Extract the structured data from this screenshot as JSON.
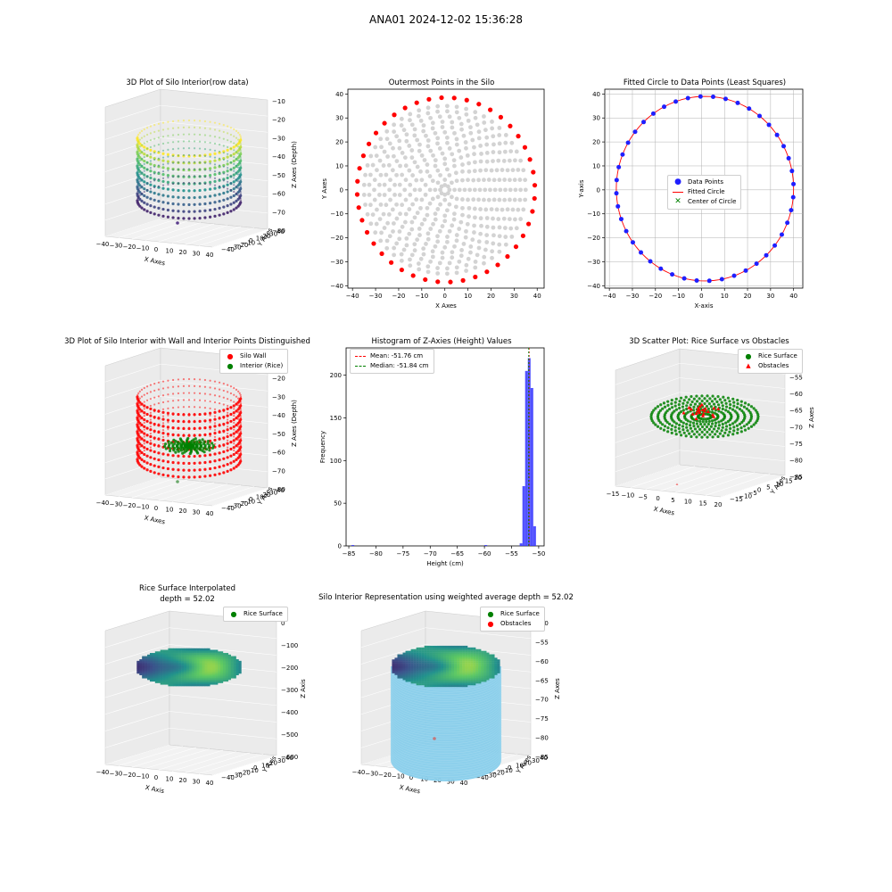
{
  "suptitle": "ANA01 2024-12-02 15:36:28",
  "colors": {
    "red": "#ff0000",
    "blue": "#1f1fff",
    "green": "#008000",
    "grey": "#d3d3d3",
    "hist": "#3333ff",
    "sky": "#87ceeb"
  },
  "chart_data": [
    {
      "type": "scatter",
      "title": "3D Plot of Silo Interior(row data)",
      "xlabel": "X Axes",
      "ylabel": "Y Axes",
      "zlabel": "Z Axes (Depth)",
      "xticks": [
        "−40",
        "−30",
        "−20",
        "−10",
        "0",
        "10",
        "20",
        "30",
        "40"
      ],
      "yticks": [
        "40",
        "30",
        "20",
        "10",
        "0",
        "−10",
        "−20",
        "−30",
        "−40"
      ],
      "zticks": [
        "−10",
        "−20",
        "−30",
        "−40",
        "−50",
        "−60",
        "−70",
        "−80"
      ],
      "xlim": [
        -40,
        40
      ],
      "ylim": [
        -40,
        40
      ],
      "zlim": [
        -85,
        -5
      ],
      "colormap": "viridis"
    },
    {
      "type": "scatter",
      "title": "Outermost Points in the Silo",
      "xlabel": "X Axes",
      "ylabel": "Y Axes",
      "xticks": [
        "−40",
        "−30",
        "−20",
        "−10",
        "0",
        "10",
        "20",
        "30",
        "40"
      ],
      "yticks": [
        "40",
        "30",
        "20",
        "10",
        "0",
        "−10",
        "−20",
        "−30",
        "−40"
      ],
      "xlim": [
        -42,
        43
      ],
      "ylim": [
        -41,
        42
      ],
      "outer_radius": 38.5,
      "outer_count": 44,
      "interior_color": "lightgrey",
      "outer_color": "red"
    },
    {
      "type": "scatter",
      "title": "Fitted Circle to Data Points (Least Squares)",
      "xlabel": "X-axis",
      "ylabel": "Y-axis",
      "xticks": [
        "−40",
        "−30",
        "−20",
        "−10",
        "0",
        "10",
        "20",
        "30",
        "40"
      ],
      "yticks": [
        "40",
        "30",
        "20",
        "10",
        "0",
        "−10",
        "−20",
        "−30",
        "−40"
      ],
      "xlim": [
        -42,
        44
      ],
      "ylim": [
        -41,
        42
      ],
      "center": [
        1.5,
        0.5
      ],
      "radius": 38.5,
      "legend": [
        "Data Points",
        "Fitted Circle",
        "Center of Circle"
      ],
      "grid": true
    },
    {
      "type": "scatter",
      "title": "3D Plot of Silo Interior with Wall and Interior Points Distinguished",
      "xlabel": "X Axes",
      "ylabel": "Y Axes",
      "zlabel": "Z Axes (Depth)",
      "xticks": [
        "−40",
        "−30",
        "−20",
        "−10",
        "0",
        "10",
        "20",
        "30",
        "40"
      ],
      "yticks": [
        "40",
        "30",
        "20",
        "10",
        "0",
        "−10",
        "−20",
        "−30",
        "−40"
      ],
      "zticks": [
        "−10",
        "−20",
        "−30",
        "−40",
        "−50",
        "−60",
        "−70",
        "−80"
      ],
      "legend": [
        "Silo Wall",
        "Interior (Rice)"
      ]
    },
    {
      "type": "bar",
      "title": "Histogram of Z-Axies (Height) Values",
      "xlabel": "Height (cm)",
      "ylabel": "Frequency",
      "xticks": [
        "−85",
        "−80",
        "−75",
        "−70",
        "−65",
        "−60",
        "−55",
        "−50"
      ],
      "yticks": [
        "0",
        "50",
        "100",
        "150",
        "200"
      ],
      "xlim": [
        -85.5,
        -49
      ],
      "ylim": [
        0,
        232
      ],
      "bins": [
        {
          "x0": -84.5,
          "x1": -84.0,
          "count": 1
        },
        {
          "x0": -60.0,
          "x1": -59.5,
          "count": 1
        },
        {
          "x0": -53.5,
          "x1": -53.0,
          "count": 3
        },
        {
          "x0": -53.0,
          "x1": -52.5,
          "count": 70
        },
        {
          "x0": -52.5,
          "x1": -52.0,
          "count": 205
        },
        {
          "x0": -52.0,
          "x1": -51.5,
          "count": 220
        },
        {
          "x0": -51.5,
          "x1": -51.0,
          "count": 185
        },
        {
          "x0": -51.0,
          "x1": -50.5,
          "count": 23
        }
      ],
      "mean": -51.76,
      "median": -51.84,
      "legend": [
        "Mean: -51.76 cm",
        "Median: -51.84 cm"
      ]
    },
    {
      "type": "scatter",
      "title": "3D Scatter Plot: Rice Surface vs Obstacles",
      "xlabel": "X Axes",
      "ylabel": "Y Axes",
      "zlabel": "Z Axes",
      "xticks": [
        "−15",
        "−10",
        "−5",
        "0",
        "5",
        "10",
        "15",
        "20"
      ],
      "yticks": [
        "20",
        "15",
        "10",
        "5",
        "0",
        "−5",
        "−10",
        "−15"
      ],
      "zticks": [
        "−50",
        "−55",
        "−60",
        "−65",
        "−70",
        "−75",
        "−80",
        "−85"
      ],
      "legend": [
        "Rice Surface",
        "Obstacles"
      ]
    },
    {
      "type": "heatmap",
      "title": "Rice Surface Interpolated",
      "subtitle": "depth = 52.02",
      "xlabel": "X Axis",
      "ylabel": "Y Axis",
      "zlabel": "Z Axis",
      "xticks": [
        "−40",
        "−30",
        "−20",
        "−10",
        "0",
        "10",
        "20",
        "30",
        "40"
      ],
      "yticks": [
        "40",
        "30",
        "20",
        "10",
        "0",
        "−10",
        "−20",
        "−30",
        "−40"
      ],
      "zticks": [
        "0",
        "−100",
        "−200",
        "−300",
        "−400",
        "−500",
        "−600"
      ],
      "legend": [
        "Rice Surface"
      ]
    },
    {
      "type": "heatmap",
      "title": "Silo Interior Representation using weighted average depth = 52.02",
      "xlabel": "X Axes",
      "ylabel": "Y Axes",
      "zlabel": "Z Axes",
      "xticks": [
        "−40",
        "−30",
        "−20",
        "−10",
        "0",
        "10",
        "20",
        "30",
        "40"
      ],
      "yticks": [
        "40",
        "30",
        "20",
        "10",
        "0",
        "−10",
        "−20",
        "−30",
        "−40"
      ],
      "zticks": [
        "−50",
        "−55",
        "−60",
        "−65",
        "−70",
        "−75",
        "−80",
        "−85"
      ],
      "legend": [
        "Rice Surface",
        "Obstacles"
      ]
    }
  ]
}
